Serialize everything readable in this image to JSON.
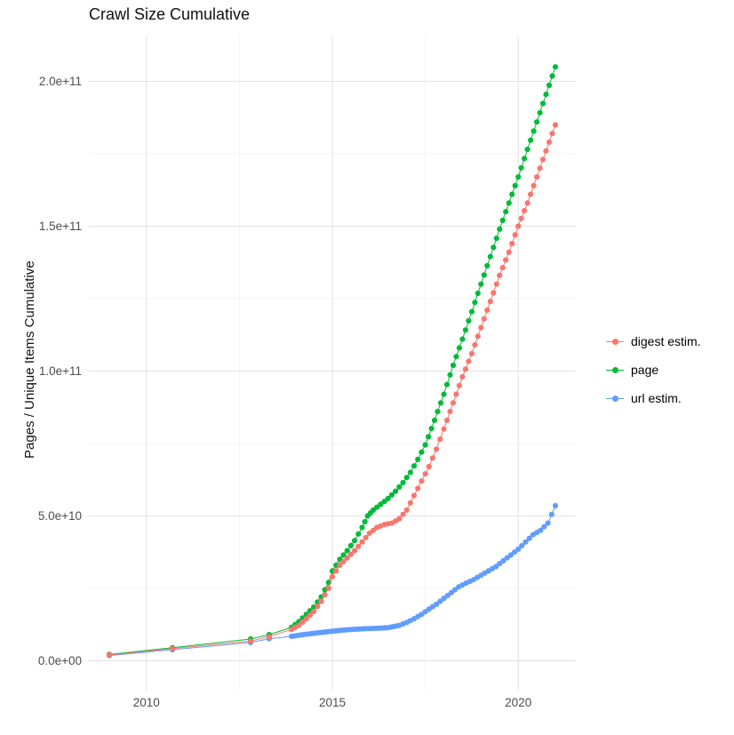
{
  "title": "Crawl Size Cumulative",
  "axes": {
    "y_label": "Pages / Unique Items Cumulative",
    "y_ticks": [
      {
        "value": 0,
        "label": "0.0e+00"
      },
      {
        "value": 50,
        "label": "5.0e+10"
      },
      {
        "value": 100,
        "label": "1.0e+11"
      },
      {
        "value": 150,
        "label": "1.5e+11"
      },
      {
        "value": 200,
        "label": "2.0e+11"
      }
    ],
    "x_ticks": [
      {
        "value": 2010,
        "label": "2010"
      },
      {
        "value": 2015,
        "label": "2015"
      },
      {
        "value": 2020,
        "label": "2020"
      }
    ]
  },
  "legend": {
    "items": [
      {
        "label": "digest estim.",
        "color": "#F8766D"
      },
      {
        "label": "page",
        "color": "#00BA38"
      },
      {
        "label": "url estim.",
        "color": "#619CFF"
      }
    ]
  },
  "chart_data": {
    "type": "scatter",
    "connected": true,
    "title": "Crawl Size Cumulative",
    "xlabel": "",
    "ylabel": "Pages / Unique Items Cumulative",
    "legend_position": "right",
    "grid": true,
    "xlim": [
      2008.45,
      2021.55
    ],
    "ylim_e9": [
      -10.3,
      215.5
    ],
    "y_values_unit": 1000000000,
    "minor_gridlines": {
      "y": [
        25,
        75,
        125,
        175
      ],
      "x": [
        2012.5,
        2017.5
      ]
    },
    "series": [
      {
        "name": "digest estim.",
        "color": "#F8766D",
        "points": [
          [
            2009.0,
            2.0
          ],
          [
            2010.7,
            4.2
          ],
          [
            2012.8,
            6.8
          ],
          [
            2013.3,
            8.3
          ],
          [
            2013.9,
            10.8
          ],
          [
            2014.1,
            12.2
          ],
          [
            2014.3,
            14.5
          ],
          [
            2014.5,
            17.0
          ],
          [
            2014.7,
            20.5
          ],
          [
            2014.9,
            25.0
          ],
          [
            2015.0,
            29.0
          ],
          [
            2015.2,
            33.0
          ],
          [
            2015.4,
            35.5
          ],
          [
            2015.6,
            38.0
          ],
          [
            2015.8,
            41.0
          ],
          [
            2016.0,
            44.0
          ],
          [
            2016.2,
            46.0
          ],
          [
            2016.4,
            47.0
          ],
          [
            2016.6,
            47.5
          ],
          [
            2016.8,
            49.0
          ],
          [
            2017.0,
            52.0
          ],
          [
            2017.2,
            57.0
          ],
          [
            2017.4,
            62.0
          ],
          [
            2017.6,
            67.0
          ],
          [
            2017.8,
            73.0
          ],
          [
            2018.0,
            80.0
          ],
          [
            2018.25,
            89.0
          ],
          [
            2018.5,
            98.0
          ],
          [
            2018.75,
            106.0
          ],
          [
            2019.0,
            115.0
          ],
          [
            2019.25,
            124.0
          ],
          [
            2019.5,
            133.0
          ],
          [
            2019.75,
            141.0
          ],
          [
            2020.0,
            150.0
          ],
          [
            2020.25,
            158.0
          ],
          [
            2020.5,
            167.0
          ],
          [
            2020.75,
            176.0
          ],
          [
            2021.0,
            185.0
          ]
        ]
      },
      {
        "name": "page",
        "color": "#00BA38",
        "points": [
          [
            2009.0,
            2.2
          ],
          [
            2010.7,
            4.5
          ],
          [
            2012.8,
            7.5
          ],
          [
            2013.3,
            9.0
          ],
          [
            2013.9,
            11.5
          ],
          [
            2014.1,
            13.5
          ],
          [
            2014.3,
            16.0
          ],
          [
            2014.5,
            18.5
          ],
          [
            2014.7,
            22.0
          ],
          [
            2014.9,
            27.0
          ],
          [
            2015.0,
            31.0
          ],
          [
            2015.2,
            35.0
          ],
          [
            2015.4,
            38.0
          ],
          [
            2015.6,
            41.5
          ],
          [
            2015.8,
            46.0
          ],
          [
            2015.95,
            50.0
          ],
          [
            2016.1,
            52.0
          ],
          [
            2016.3,
            54.0
          ],
          [
            2016.5,
            56.0
          ],
          [
            2016.7,
            58.5
          ],
          [
            2016.9,
            61.5
          ],
          [
            2017.1,
            65.0
          ],
          [
            2017.3,
            69.5
          ],
          [
            2017.5,
            74.5
          ],
          [
            2017.75,
            83.0
          ],
          [
            2018.0,
            92.0
          ],
          [
            2018.25,
            102.0
          ],
          [
            2018.5,
            111.0
          ],
          [
            2018.75,
            120.5
          ],
          [
            2019.0,
            130.0
          ],
          [
            2019.25,
            139.5
          ],
          [
            2019.5,
            149.0
          ],
          [
            2019.75,
            158.0
          ],
          [
            2020.0,
            167.0
          ],
          [
            2020.25,
            176.5
          ],
          [
            2020.5,
            186.0
          ],
          [
            2020.75,
            195.5
          ],
          [
            2021.0,
            205.0
          ]
        ]
      },
      {
        "name": "url estim.",
        "color": "#619CFF",
        "points": [
          [
            2009.0,
            1.8
          ],
          [
            2010.7,
            3.8
          ],
          [
            2012.8,
            6.3
          ],
          [
            2013.3,
            7.6
          ],
          [
            2013.9,
            8.4
          ],
          [
            2014.2,
            9.0
          ],
          [
            2014.6,
            9.6
          ],
          [
            2015.0,
            10.2
          ],
          [
            2015.4,
            10.7
          ],
          [
            2015.8,
            11.0
          ],
          [
            2016.2,
            11.2
          ],
          [
            2016.5,
            11.4
          ],
          [
            2016.8,
            12.2
          ],
          [
            2017.0,
            13.2
          ],
          [
            2017.2,
            14.5
          ],
          [
            2017.4,
            16.0
          ],
          [
            2017.6,
            17.8
          ],
          [
            2017.8,
            19.5
          ],
          [
            2018.0,
            21.5
          ],
          [
            2018.2,
            23.5
          ],
          [
            2018.4,
            25.5
          ],
          [
            2018.6,
            26.8
          ],
          [
            2018.8,
            28.0
          ],
          [
            2019.0,
            29.5
          ],
          [
            2019.2,
            31.0
          ],
          [
            2019.4,
            32.5
          ],
          [
            2019.6,
            34.5
          ],
          [
            2019.8,
            36.5
          ],
          [
            2020.0,
            38.5
          ],
          [
            2020.2,
            41.0
          ],
          [
            2020.4,
            43.5
          ],
          [
            2020.6,
            45.0
          ],
          [
            2020.8,
            47.5
          ],
          [
            2021.0,
            53.5
          ]
        ]
      }
    ]
  }
}
